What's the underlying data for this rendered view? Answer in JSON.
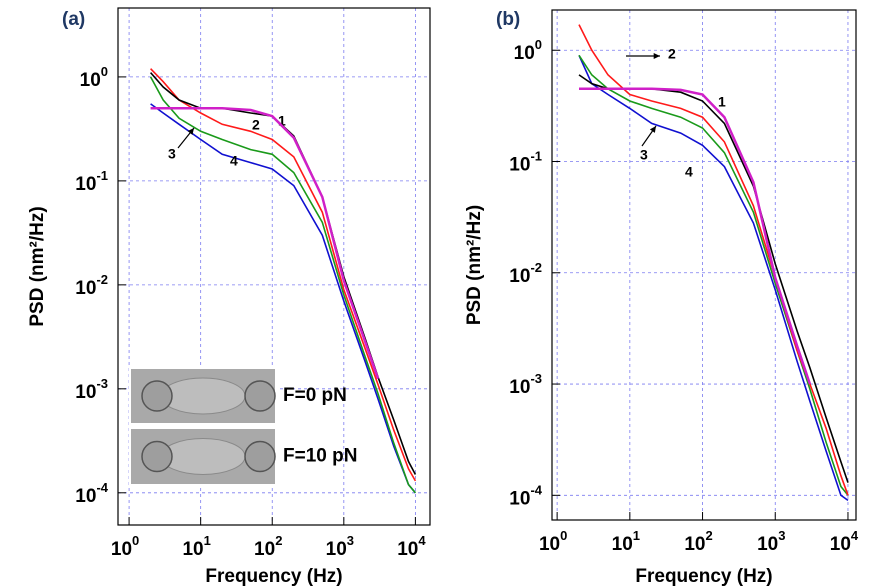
{
  "chart_data": [
    {
      "type": "line",
      "panel_label": "(a)",
      "x_label": "Frequency (Hz)",
      "y_label": "PSD (nm²/Hz)",
      "log_x": true,
      "log_y": true,
      "grid": true,
      "grid_color": "#7b7bf0",
      "xlim": [
        0.7,
        16000
      ],
      "ylim": [
        4.9e-05,
        4.6
      ],
      "xticks": [
        {
          "value": 1,
          "label": "10",
          "exponent": "0"
        },
        {
          "value": 10,
          "label": "10",
          "exponent": "1"
        },
        {
          "value": 100,
          "label": "10",
          "exponent": "2"
        },
        {
          "value": 1000,
          "label": "10",
          "exponent": "3"
        },
        {
          "value": 10000,
          "label": "10",
          "exponent": "4"
        }
      ],
      "yticks": [
        {
          "value": 0.0001,
          "label": "10",
          "exponent": "-4"
        },
        {
          "value": 0.001,
          "label": "10",
          "exponent": "-3"
        },
        {
          "value": 0.01,
          "label": "10",
          "exponent": "-2"
        },
        {
          "value": 0.1,
          "label": "10",
          "exponent": "-1"
        },
        {
          "value": 1,
          "label": "10",
          "exponent": "0"
        }
      ],
      "x": [
        2,
        3,
        5,
        10,
        20,
        50,
        100,
        200,
        500,
        1000,
        2000,
        3000,
        5000,
        8000,
        10000
      ],
      "series": [
        {
          "name": "4",
          "color": "#1010d0",
          "values": [
            0.55,
            0.45,
            0.35,
            0.25,
            0.18,
            0.15,
            0.13,
            0.09,
            0.03,
            0.007,
            0.0018,
            0.0008,
            0.00028,
            0.00012,
            0.0001
          ]
        },
        {
          "name": "3",
          "color": "#1a9a1a",
          "values": [
            1.0,
            0.6,
            0.4,
            0.3,
            0.25,
            0.2,
            0.18,
            0.12,
            0.04,
            0.008,
            0.002,
            0.0009,
            0.0003,
            0.00012,
            0.0001
          ]
        },
        {
          "name": "2",
          "color": "#ff1a1a",
          "values": [
            1.2,
            0.9,
            0.6,
            0.45,
            0.35,
            0.3,
            0.25,
            0.17,
            0.05,
            0.009,
            0.0024,
            0.0011,
            0.0004,
            0.00017,
            0.00013
          ]
        },
        {
          "name": "1",
          "color": "#000000",
          "values": [
            1.1,
            0.8,
            0.6,
            0.5,
            0.5,
            0.45,
            0.42,
            0.27,
            0.07,
            0.012,
            0.003,
            0.0013,
            0.0005,
            0.0002,
            0.00015
          ]
        }
      ],
      "fit": {
        "color": "#d020c8",
        "values": [
          0.5,
          0.5,
          0.5,
          0.5,
          0.5,
          0.48,
          0.42,
          0.26,
          0.07,
          0.011,
          0.0028,
          0.00125,
          null,
          null,
          null
        ]
      },
      "inset_labels": [
        "F=0 pN",
        "F=10 pN"
      ]
    },
    {
      "type": "line",
      "panel_label": "(b)",
      "x_label": "Frequency (Hz)",
      "y_label": "PSD (nm²/Hz)",
      "log_x": true,
      "log_y": true,
      "grid": true,
      "grid_color": "#7b7bf0",
      "xlim": [
        0.85,
        12900
      ],
      "ylim": [
        6e-05,
        2.3
      ],
      "xticks": [
        {
          "value": 1,
          "label": "10",
          "exponent": "0"
        },
        {
          "value": 10,
          "label": "10",
          "exponent": "1"
        },
        {
          "value": 100,
          "label": "10",
          "exponent": "2"
        },
        {
          "value": 1000,
          "label": "10",
          "exponent": "3"
        },
        {
          "value": 10000,
          "label": "10",
          "exponent": "4"
        }
      ],
      "yticks": [
        {
          "value": 0.0001,
          "label": "10",
          "exponent": "-4"
        },
        {
          "value": 0.001,
          "label": "10",
          "exponent": "-3"
        },
        {
          "value": 0.01,
          "label": "10",
          "exponent": "-2"
        },
        {
          "value": 0.1,
          "label": "10",
          "exponent": "-1"
        },
        {
          "value": 1,
          "label": "10",
          "exponent": "0"
        }
      ],
      "x": [
        2,
        3,
        5,
        10,
        20,
        50,
        100,
        200,
        500,
        1000,
        2000,
        3000,
        5000,
        8000,
        10000
      ],
      "series": [
        {
          "name": "4",
          "color": "#1010d0",
          "values": [
            0.9,
            0.5,
            0.4,
            0.3,
            0.22,
            0.18,
            0.14,
            0.09,
            0.028,
            0.007,
            0.0016,
            0.0007,
            0.00025,
            0.0001,
            9e-05
          ]
        },
        {
          "name": "3",
          "color": "#1a9a1a",
          "values": [
            0.9,
            0.6,
            0.45,
            0.35,
            0.3,
            0.25,
            0.2,
            0.12,
            0.035,
            0.008,
            0.002,
            0.0009,
            0.0003,
            0.00012,
            0.0001
          ]
        },
        {
          "name": "2",
          "color": "#ff1a1a",
          "values": [
            1.7,
            1.0,
            0.6,
            0.4,
            0.35,
            0.3,
            0.25,
            0.15,
            0.04,
            0.009,
            0.002,
            0.001,
            0.0004,
            0.00015,
            0.0001
          ]
        },
        {
          "name": "1",
          "color": "#000000",
          "values": [
            0.6,
            0.5,
            0.45,
            0.45,
            0.45,
            0.42,
            0.35,
            0.22,
            0.06,
            0.012,
            0.003,
            0.0014,
            0.0005,
            0.0002,
            0.00013
          ]
        }
      ],
      "fit": {
        "color": "#d020c8",
        "values": [
          0.45,
          0.45,
          0.45,
          0.45,
          0.45,
          0.44,
          0.4,
          0.25,
          0.065,
          0.009,
          0.0022,
          0.001,
          null,
          null,
          null
        ]
      }
    }
  ]
}
